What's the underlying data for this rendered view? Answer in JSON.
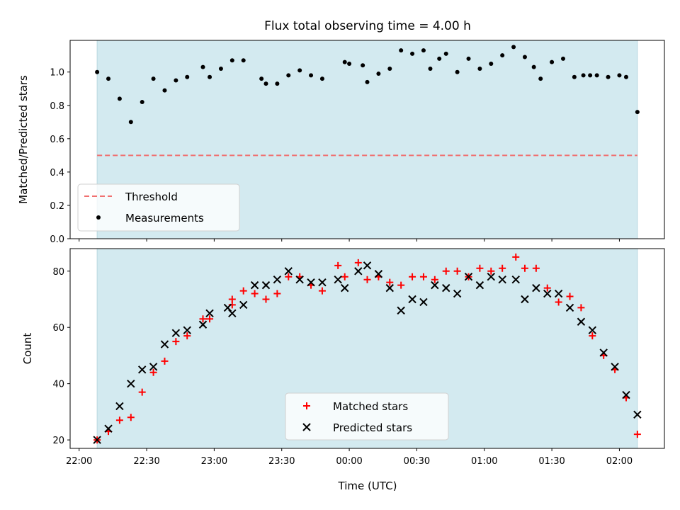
{
  "chart_data": [
    {
      "type": "scatter",
      "title": "Flux total observing time = 4.00 h",
      "ylabel": "Matched/Predicted stars",
      "ylim": [
        0,
        1.19
      ],
      "yticks": [
        0.0,
        0.2,
        0.4,
        0.6,
        0.8,
        1.0
      ],
      "ytick_labels": [
        "0.0",
        "0.2",
        "0.4",
        "0.6",
        "0.8",
        "1.0"
      ],
      "shaded_region": {
        "from": 0,
        "to": 240,
        "color": "#d3eaf0"
      },
      "threshold": {
        "name": "Threshold",
        "value": 0.5,
        "color": "#f07070",
        "style": "dashed"
      },
      "series": [
        {
          "name": "Measurements",
          "color": "#000000",
          "x": [
            0,
            5,
            10,
            15,
            20,
            25,
            30,
            35,
            40,
            47,
            50,
            55,
            60,
            65,
            73,
            75,
            80,
            85,
            90,
            95,
            100,
            110,
            112,
            118,
            120,
            125,
            130,
            135,
            140,
            145,
            148,
            152,
            155,
            160,
            165,
            170,
            175,
            180,
            185,
            190,
            194,
            197,
            202,
            207,
            212,
            216,
            219,
            222,
            227,
            232,
            235,
            240
          ],
          "y": [
            1.0,
            0.96,
            0.84,
            0.7,
            0.82,
            0.96,
            0.89,
            0.95,
            0.97,
            1.03,
            0.97,
            1.02,
            1.07,
            1.07,
            0.96,
            0.93,
            0.93,
            0.98,
            1.01,
            0.98,
            0.96,
            1.06,
            1.05,
            1.04,
            0.94,
            0.99,
            1.02,
            1.13,
            1.11,
            1.13,
            1.02,
            1.08,
            1.11,
            1.0,
            1.08,
            1.02,
            1.05,
            1.1,
            1.15,
            1.09,
            1.03,
            0.96,
            1.06,
            1.08,
            0.97,
            0.98,
            0.98,
            0.98,
            0.97,
            0.98,
            0.97,
            0.76
          ]
        }
      ],
      "legend": {
        "placement": "lower-left",
        "entries": [
          "Threshold",
          "Measurements"
        ]
      }
    },
    {
      "type": "scatter",
      "xlabel": "Time (UTC)",
      "ylabel": "Count",
      "ylim": [
        17,
        88
      ],
      "yticks": [
        20,
        40,
        60,
        80
      ],
      "ytick_labels": [
        "20",
        "40",
        "60",
        "80"
      ],
      "xlim": [
        -12,
        252
      ],
      "xticks": [
        -8,
        22,
        52,
        82,
        112,
        142,
        172,
        202,
        232
      ],
      "xtick_labels": [
        "22:00",
        "22:30",
        "23:00",
        "23:30",
        "00:00",
        "00:30",
        "01:00",
        "01:30",
        "02:00"
      ],
      "shaded_region": {
        "from": 0,
        "to": 240,
        "color": "#d3eaf0"
      },
      "series": [
        {
          "name": "Matched stars",
          "marker": "plus",
          "color": "#ff0000",
          "points": [
            [
              0,
              20
            ],
            [
              5,
              23
            ],
            [
              10,
              27
            ],
            [
              15,
              28
            ],
            [
              20,
              37
            ],
            [
              25,
              44
            ],
            [
              30,
              48
            ],
            [
              35,
              55
            ],
            [
              40,
              57
            ],
            [
              47,
              63
            ],
            [
              50,
              63
            ],
            [
              60,
              68
            ],
            [
              60,
              70
            ],
            [
              65,
              73
            ],
            [
              70,
              72
            ],
            [
              75,
              70
            ],
            [
              80,
              72
            ],
            [
              85,
              78
            ],
            [
              90,
              78
            ],
            [
              95,
              75
            ],
            [
              100,
              73
            ],
            [
              107,
              82
            ],
            [
              110,
              78
            ],
            [
              116,
              83
            ],
            [
              120,
              77
            ],
            [
              125,
              78
            ],
            [
              130,
              76
            ],
            [
              135,
              75
            ],
            [
              140,
              78
            ],
            [
              145,
              78
            ],
            [
              150,
              77
            ],
            [
              155,
              80
            ],
            [
              160,
              80
            ],
            [
              165,
              78
            ],
            [
              170,
              81
            ],
            [
              175,
              80
            ],
            [
              180,
              81
            ],
            [
              186,
              85
            ],
            [
              190,
              81
            ],
            [
              195,
              81
            ],
            [
              200,
              74
            ],
            [
              205,
              69
            ],
            [
              210,
              71
            ],
            [
              215,
              67
            ],
            [
              220,
              57
            ],
            [
              225,
              50
            ],
            [
              230,
              45
            ],
            [
              235,
              35
            ],
            [
              240,
              22
            ]
          ]
        },
        {
          "name": "Predicted stars",
          "marker": "x",
          "color": "#000000",
          "points": [
            [
              0,
              20
            ],
            [
              5,
              24
            ],
            [
              10,
              32
            ],
            [
              15,
              40
            ],
            [
              20,
              45
            ],
            [
              25,
              46
            ],
            [
              30,
              54
            ],
            [
              35,
              58
            ],
            [
              40,
              59
            ],
            [
              47,
              61
            ],
            [
              50,
              65
            ],
            [
              58,
              67
            ],
            [
              60,
              65
            ],
            [
              65,
              68
            ],
            [
              70,
              75
            ],
            [
              75,
              75
            ],
            [
              80,
              77
            ],
            [
              85,
              80
            ],
            [
              90,
              77
            ],
            [
              95,
              76
            ],
            [
              100,
              76
            ],
            [
              107,
              77
            ],
            [
              110,
              74
            ],
            [
              116,
              80
            ],
            [
              120,
              82
            ],
            [
              125,
              79
            ],
            [
              130,
              74
            ],
            [
              135,
              66
            ],
            [
              140,
              70
            ],
            [
              145,
              69
            ],
            [
              150,
              75
            ],
            [
              155,
              74
            ],
            [
              160,
              72
            ],
            [
              165,
              78
            ],
            [
              170,
              75
            ],
            [
              175,
              78
            ],
            [
              180,
              77
            ],
            [
              186,
              77
            ],
            [
              190,
              70
            ],
            [
              195,
              74
            ],
            [
              200,
              72
            ],
            [
              205,
              72
            ],
            [
              210,
              67
            ],
            [
              215,
              62
            ],
            [
              220,
              59
            ],
            [
              225,
              51
            ],
            [
              230,
              46
            ],
            [
              235,
              36
            ],
            [
              240,
              29
            ]
          ]
        }
      ],
      "legend": {
        "placement": "lower-center",
        "entries": [
          "Matched stars",
          "Predicted stars"
        ]
      }
    }
  ]
}
